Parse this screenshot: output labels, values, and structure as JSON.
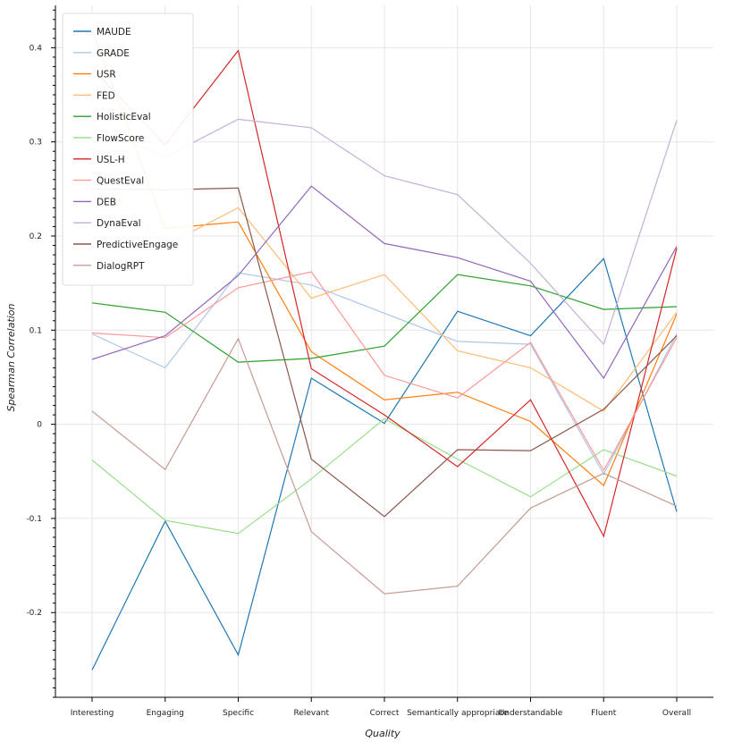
{
  "chart_data": {
    "type": "line",
    "title": "",
    "xlabel": "Quality",
    "ylabel": "Spearman Correlation",
    "categories": [
      "Interesting",
      "Engaging",
      "Specific",
      "Relevant",
      "Correct",
      "Semantically appropriate",
      "Understandable",
      "Fluent",
      "Overall"
    ],
    "ylim": [
      -0.29,
      0.445
    ],
    "yticks": [
      -0.2,
      -0.1,
      0,
      0.1,
      0.2,
      0.3,
      0.4
    ],
    "ytick_labels": [
      "-0.2",
      "-0.1",
      "0",
      "0.1",
      "0.2",
      "0.3",
      "0.4"
    ],
    "grid": true,
    "legend_position": "top-left",
    "series": [
      {
        "name": "MAUDE",
        "color": "#1f77b4",
        "values": [
          -0.261,
          -0.103,
          -0.245,
          0.049,
          0.001,
          0.12,
          0.094,
          0.176,
          -0.093
        ]
      },
      {
        "name": "GRADE",
        "color": "#aec7e8",
        "values": [
          0.096,
          0.06,
          0.161,
          0.148,
          0.118,
          0.088,
          0.085,
          -0.053,
          0.096
        ]
      },
      {
        "name": "USR",
        "color": "#ff7f0e",
        "values": [
          0.419,
          0.208,
          0.215,
          0.077,
          0.026,
          0.034,
          0.003,
          -0.065,
          0.117
        ]
      },
      {
        "name": "FED",
        "color": "#ffbb78",
        "values": [
          0.269,
          0.19,
          0.23,
          0.134,
          0.159,
          0.078,
          0.06,
          0.014,
          0.119
        ]
      },
      {
        "name": "HolisticEval",
        "color": "#2ca02c",
        "values": [
          0.129,
          0.119,
          0.066,
          0.07,
          0.083,
          0.159,
          0.147,
          0.122,
          0.125
        ]
      },
      {
        "name": "FlowScore",
        "color": "#98df8a",
        "values": [
          -0.038,
          -0.102,
          -0.116,
          -0.058,
          0.006,
          -0.037,
          -0.077,
          -0.027,
          -0.055
        ]
      },
      {
        "name": "USL-H",
        "color": "#d62728",
        "values": [
          0.378,
          0.297,
          0.397,
          0.059,
          0.01,
          -0.045,
          0.026,
          -0.119,
          0.187
        ]
      },
      {
        "name": "QuestEval",
        "color": "#ff9896",
        "values": [
          0.097,
          0.092,
          0.145,
          0.162,
          0.052,
          0.028,
          0.087,
          -0.049,
          0.092
        ]
      },
      {
        "name": "DEB",
        "color": "#9467bd",
        "values": [
          0.069,
          0.094,
          0.158,
          0.253,
          0.192,
          0.177,
          0.152,
          0.049,
          0.189
        ]
      },
      {
        "name": "DynaEval",
        "color": "#c5b0d5",
        "values": [
          0.316,
          0.284,
          0.324,
          0.315,
          0.264,
          0.244,
          0.171,
          0.085,
          0.323
        ]
      },
      {
        "name": "PredictiveEngage",
        "color": "#8c564b",
        "values": [
          0.25,
          0.249,
          0.251,
          -0.037,
          -0.098,
          -0.027,
          -0.028,
          0.016,
          0.094
        ]
      },
      {
        "name": "DialogRPT",
        "color": "#c49c94",
        "values": [
          0.014,
          -0.048,
          0.091,
          -0.114,
          -0.18,
          -0.172,
          -0.089,
          -0.052,
          -0.087
        ]
      }
    ]
  }
}
